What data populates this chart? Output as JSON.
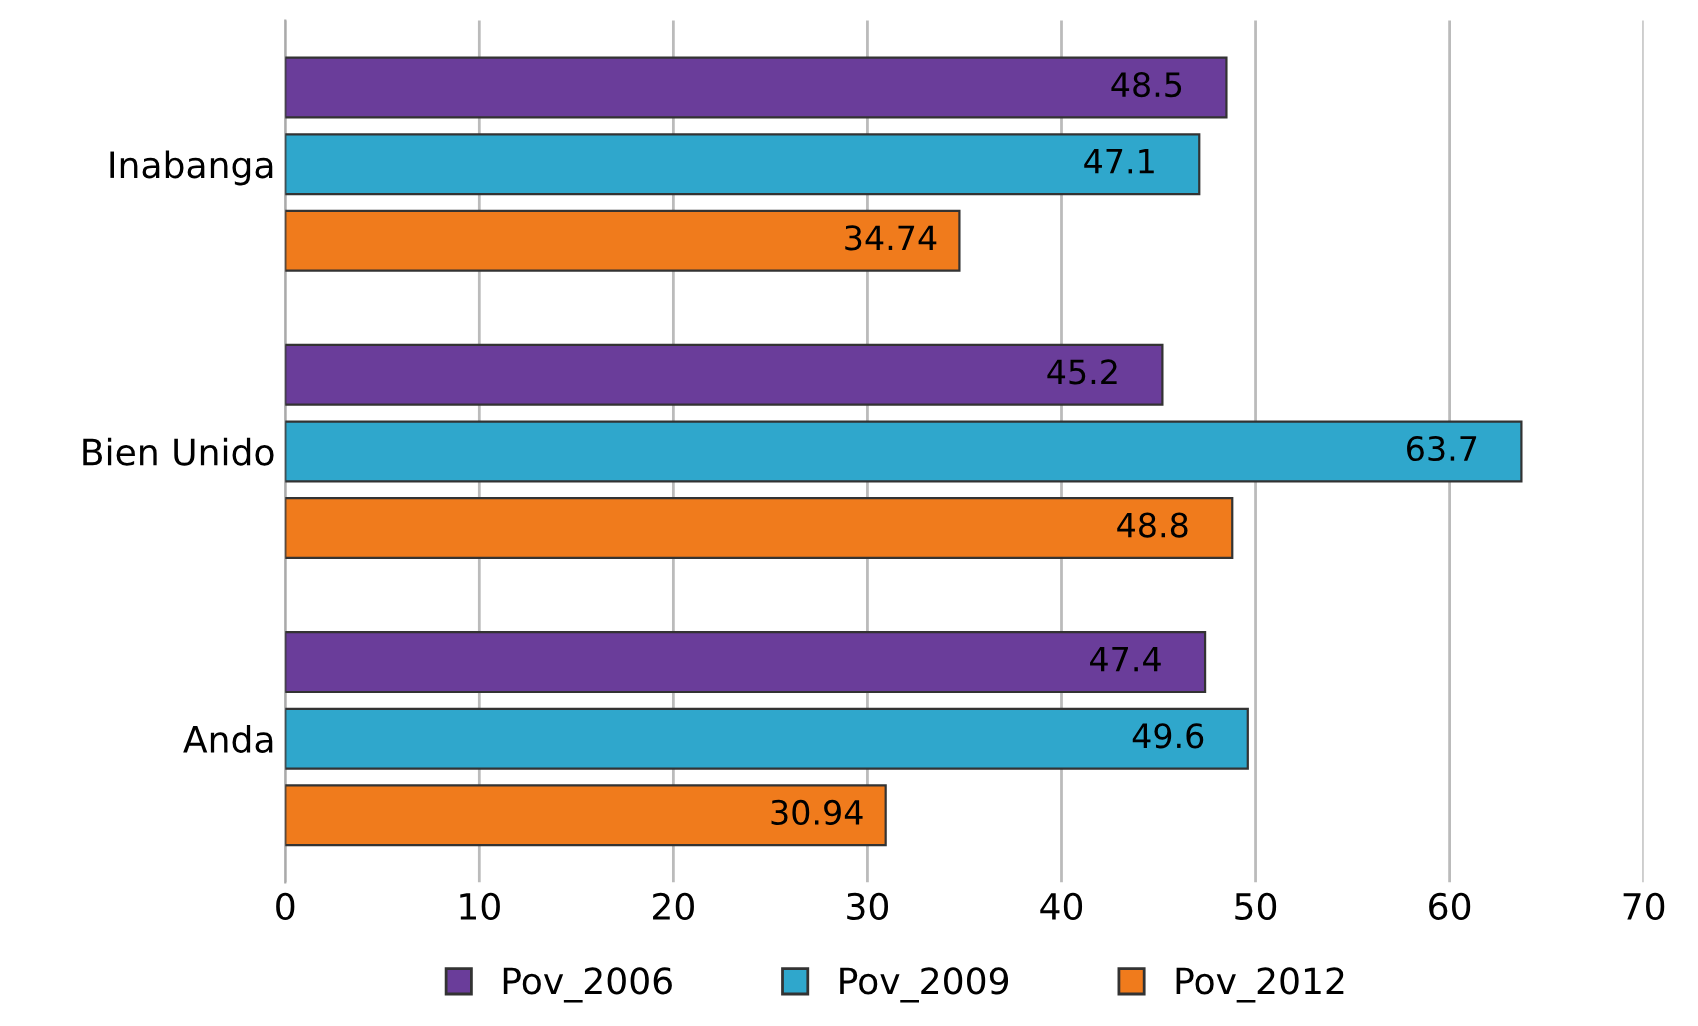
{
  "chart_data": {
    "type": "bar",
    "orientation": "horizontal",
    "categories": [
      "Inabanga",
      "Bien Unido",
      "Anda"
    ],
    "series": [
      {
        "name": "Pov_2006",
        "color": "#6a3d9a",
        "values": [
          48.5,
          45.2,
          47.4
        ]
      },
      {
        "name": "Pov_2009",
        "color": "#2fa7cc",
        "values": [
          47.1,
          63.7,
          49.6
        ]
      },
      {
        "name": "Pov_2012",
        "color": "#f07b1c",
        "values": [
          34.74,
          48.8,
          30.94
        ]
      }
    ],
    "xlim": [
      0,
      70
    ],
    "xticks": [
      0,
      10,
      20,
      30,
      40,
      50,
      60,
      70
    ],
    "grid": "x",
    "legend": "bottom",
    "data_labels": true
  }
}
